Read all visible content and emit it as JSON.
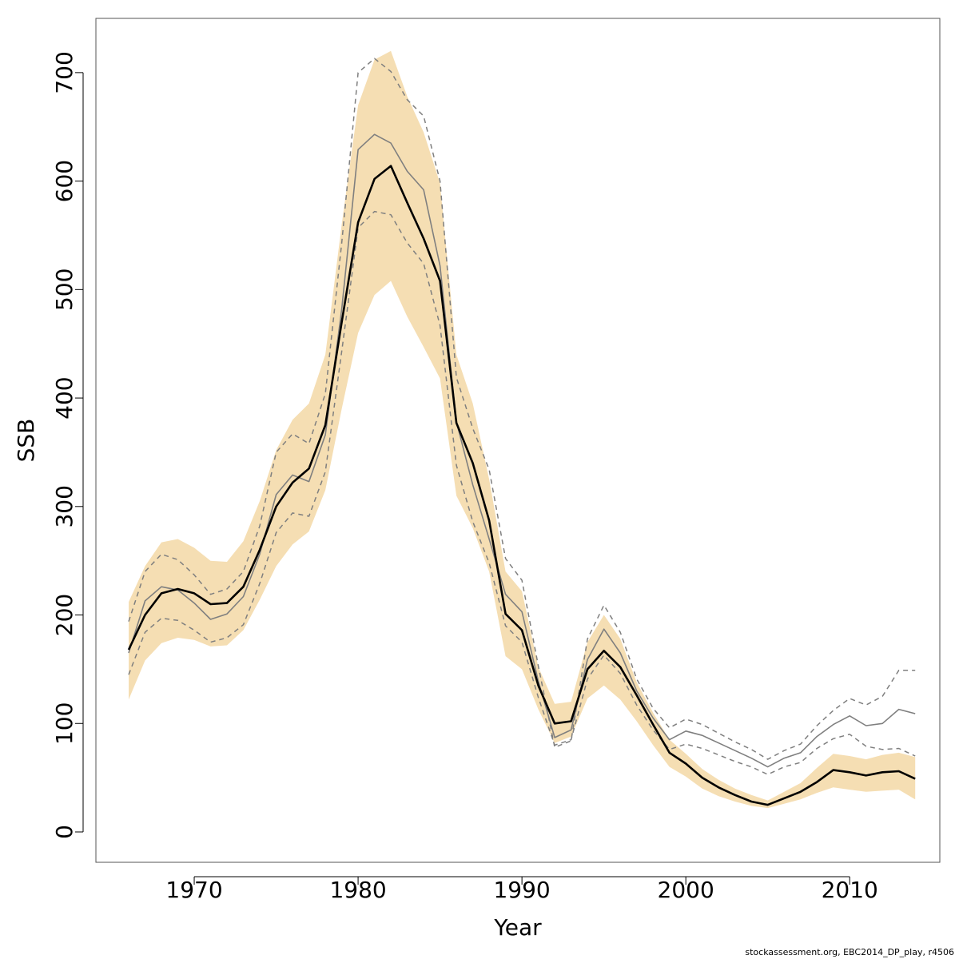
{
  "chart_data": {
    "type": "line",
    "xlabel": "Year",
    "ylabel": "SSB",
    "xlim": [
      1964,
      2015.5
    ],
    "ylim": [
      -28,
      750
    ],
    "x_ticks": [
      1970,
      1980,
      1990,
      2000,
      2010
    ],
    "y_ticks": [
      0,
      100,
      200,
      300,
      400,
      500,
      600,
      700
    ],
    "grid": false,
    "legend": "none",
    "x": [
      1966,
      1967,
      1968,
      1969,
      1970,
      1971,
      1972,
      1973,
      1974,
      1975,
      1976,
      1977,
      1978,
      1979,
      1980,
      1981,
      1982,
      1983,
      1984,
      1985,
      1986,
      1987,
      1988,
      1989,
      1990,
      1991,
      1992,
      1993,
      1994,
      1995,
      1996,
      1997,
      1998,
      1999,
      2000,
      2001,
      2002,
      2003,
      2004,
      2005,
      2006,
      2007,
      2008,
      2009,
      2010,
      2011,
      2012,
      2013,
      2014
    ],
    "band": {
      "color": "#f5deb3",
      "upper": [
        212,
        245,
        267,
        270,
        262,
        250,
        249,
        268,
        305,
        352,
        380,
        395,
        440,
        560,
        670,
        712,
        720,
        678,
        645,
        598,
        440,
        395,
        325,
        240,
        222,
        152,
        118,
        120,
        175,
        200,
        178,
        138,
        110,
        85,
        72,
        58,
        48,
        40,
        34,
        29,
        37,
        45,
        59,
        72,
        70,
        67,
        71,
        73,
        69
      ],
      "lower": [
        122,
        158,
        174,
        179,
        177,
        171,
        172,
        186,
        214,
        245,
        265,
        277,
        315,
        390,
        460,
        495,
        508,
        475,
        447,
        418,
        310,
        280,
        240,
        162,
        150,
        113,
        82,
        88,
        123,
        135,
        122,
        102,
        80,
        60,
        51,
        40,
        33,
        28,
        24,
        22,
        26,
        30,
        36,
        41,
        39,
        37,
        38,
        39,
        30
      ]
    },
    "series": [
      {
        "role": "estimate",
        "color": "#000000",
        "values": [
          168,
          200,
          220,
          224,
          220,
          210,
          211,
          226,
          260,
          300,
          322,
          335,
          375,
          470,
          562,
          602,
          614,
          580,
          547,
          508,
          377,
          340,
          287,
          201,
          186,
          135,
          100,
          102,
          150,
          167,
          152,
          126,
          99,
          73,
          63,
          50,
          41,
          34,
          28,
          25,
          31,
          37,
          46,
          57,
          55,
          52,
          55,
          56,
          49
        ]
      },
      {
        "role": "alternative",
        "color": "#7f7f7f",
        "values": [
          165,
          213,
          226,
          223,
          211,
          196,
          201,
          217,
          256,
          311,
          329,
          323,
          366,
          482,
          629,
          643,
          635,
          609,
          592,
          522,
          378,
          320,
          270,
          219,
          203,
          139,
          87,
          94,
          159,
          187,
          165,
          130,
          105,
          85,
          93,
          89,
          82,
          75,
          68,
          60,
          68,
          73,
          88,
          99,
          107,
          98,
          100,
          113,
          109
        ]
      },
      {
        "role": "alternative-upper",
        "color": "#7f7f7f",
        "dashed": true,
        "values": [
          194,
          240,
          256,
          251,
          237,
          219,
          224,
          240,
          282,
          350,
          367,
          358,
          404,
          543,
          700,
          713,
          701,
          675,
          660,
          600,
          419,
          372,
          334,
          252,
          232,
          153,
          78,
          84,
          178,
          209,
          184,
          141,
          114,
          96,
          104,
          99,
          91,
          83,
          76,
          67,
          75,
          81,
          98,
          112,
          123,
          117,
          125,
          149,
          149
        ]
      },
      {
        "role": "alternative-lower",
        "color": "#7f7f7f",
        "dashed": true,
        "values": [
          145,
          184,
          197,
          195,
          186,
          175,
          179,
          191,
          229,
          276,
          294,
          291,
          332,
          443,
          557,
          572,
          569,
          543,
          524,
          467,
          338,
          286,
          248,
          190,
          175,
          124,
          80,
          85,
          141,
          163,
          146,
          117,
          94,
          76,
          81,
          77,
          71,
          65,
          60,
          53,
          60,
          64,
          77,
          86,
          90,
          79,
          76,
          77,
          70
        ]
      }
    ]
  },
  "footer": "stockassessment.org, EBC2014_DP_play, r4506"
}
